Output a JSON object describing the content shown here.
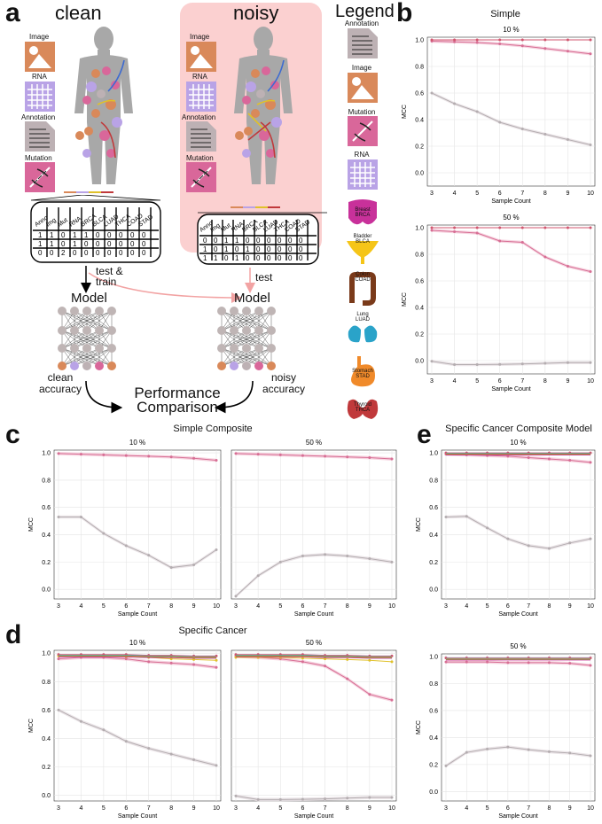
{
  "panel_labels": {
    "a": "a",
    "b": "b",
    "c": "c",
    "d": "d",
    "e": "e"
  },
  "panel_a": {
    "clean_title": "clean",
    "noisy_title": "noisy",
    "legend_title": "Legend",
    "modalities": [
      "Image",
      "RNA",
      "Annotation",
      "Mutation"
    ],
    "table_headers": [
      "Anno",
      "Img",
      "Mut",
      "RNA",
      "BRCA",
      "BLCA",
      "LUAD",
      "THCA",
      "COAD",
      "STAD"
    ],
    "clean_rows": [
      [
        "1",
        "1",
        "0",
        "1",
        "1",
        "0",
        "0",
        "0",
        "0",
        "0"
      ],
      [
        "1",
        "1",
        "0",
        "1",
        "0",
        "0",
        "0",
        "0",
        "0",
        "0"
      ],
      [
        "0",
        "0",
        "2",
        "0",
        "0",
        "0",
        "0",
        "0",
        "0",
        "0"
      ]
    ],
    "noisy_rows": [
      [
        "0",
        "0",
        "1",
        "1",
        "0",
        "0",
        "0",
        "0",
        "0",
        "0"
      ],
      [
        "1",
        "0",
        "1",
        "0",
        "1",
        "0",
        "0",
        "0",
        "0",
        "0"
      ],
      [
        "1",
        "1",
        "0",
        "1",
        "0",
        "0",
        "0",
        "0",
        "0",
        "0"
      ]
    ],
    "test_train_label": "test &\ntrain",
    "test_label": "test",
    "model_label": "Model",
    "clean_accuracy": "clean\naccuracy",
    "noisy_accuracy": "noisy\naccuracy",
    "performance": "Performance\nComparison",
    "legend_items": [
      "Annotation",
      "Image",
      "Mutation",
      "RNA"
    ],
    "cancers": [
      {
        "name": "Breast",
        "code": "BRCA",
        "color": "#c8319a"
      },
      {
        "name": "Bladder",
        "code": "BLCA",
        "color": "#f5c518"
      },
      {
        "name": "Colon",
        "code": "COAD",
        "color": "#7a3a1a"
      },
      {
        "name": "Lung",
        "code": "LUAD",
        "color": "#2aa3c9"
      },
      {
        "name": "Stomach",
        "code": "STAD",
        "color": "#f08a2a"
      },
      {
        "name": "Thyroid",
        "code": "THCA",
        "color": "#c0393b"
      }
    ]
  },
  "colors": {
    "image": "#d9895a",
    "rna": "#b9a3e6",
    "annotation": "#bdb1b4",
    "mutation": "#d9679a",
    "grey_line": "#b4adb0",
    "pink_line": "#d76e94",
    "noisy_bg": "#fbd0d0"
  },
  "chart_data": [
    {
      "id": "b1",
      "type": "line",
      "section": "Simple",
      "title": "10 %",
      "xlabel": "Sample Count",
      "ylabel": "MCC",
      "ylim": [
        -0.1,
        1.02
      ],
      "x": [
        3,
        4,
        5,
        6,
        7,
        8,
        9,
        10
      ],
      "yticks": [
        "0.0",
        "0.2",
        "0.4",
        "0.6",
        "0.8",
        "1.0"
      ],
      "series": [
        {
          "name": "grey",
          "values": [
            0.6,
            0.52,
            0.46,
            0.38,
            0.33,
            0.29,
            0.25,
            0.21
          ]
        },
        {
          "name": "pink",
          "values": [
            0.99,
            0.985,
            0.98,
            0.97,
            0.955,
            0.935,
            0.915,
            0.895
          ]
        },
        {
          "name": "top",
          "values": [
            1.0,
            1.0,
            1.0,
            1.0,
            1.0,
            1.0,
            1.0,
            1.0
          ]
        }
      ]
    },
    {
      "id": "b2",
      "type": "line",
      "title": "50 %",
      "xlabel": "Sample Count",
      "ylabel": "MCC",
      "ylim": [
        -0.1,
        1.02
      ],
      "x": [
        3,
        4,
        5,
        6,
        7,
        8,
        9,
        10
      ],
      "yticks": [
        "0.0",
        "0.2",
        "0.4",
        "0.6",
        "0.8",
        "1.0"
      ],
      "series": [
        {
          "name": "grey",
          "values": [
            -0.005,
            -0.03,
            -0.03,
            -0.028,
            -0.025,
            -0.02,
            -0.015,
            -0.015
          ]
        },
        {
          "name": "pink",
          "values": [
            0.98,
            0.97,
            0.96,
            0.9,
            0.89,
            0.78,
            0.71,
            0.67
          ]
        },
        {
          "name": "top",
          "values": [
            1.0,
            1.0,
            1.0,
            1.0,
            1.0,
            1.0,
            1.0,
            1.0
          ]
        }
      ]
    },
    {
      "id": "c1",
      "type": "line",
      "section": "Simple Composite",
      "title": "10 %",
      "xlabel": "Sample Count",
      "ylabel": "MCC",
      "ylim": [
        -0.07,
        1.02
      ],
      "x": [
        3,
        4,
        5,
        6,
        7,
        8,
        9,
        10
      ],
      "yticks": [
        "0.0",
        "0.2",
        "0.4",
        "0.6",
        "0.8",
        "1.0"
      ],
      "series": [
        {
          "name": "grey",
          "values": [
            0.53,
            0.53,
            0.41,
            0.32,
            0.25,
            0.16,
            0.18,
            0.29
          ]
        },
        {
          "name": "pink",
          "values": [
            0.995,
            0.99,
            0.985,
            0.98,
            0.975,
            0.97,
            0.96,
            0.945
          ]
        }
      ]
    },
    {
      "id": "c2",
      "type": "line",
      "title": "50 %",
      "xlabel": "Sample Count",
      "ylabel": "",
      "ylim": [
        -0.07,
        1.02
      ],
      "x": [
        3,
        4,
        5,
        6,
        7,
        8,
        9,
        10
      ],
      "yticks": [],
      "series": [
        {
          "name": "grey",
          "values": [
            -0.05,
            0.1,
            0.2,
            0.245,
            0.255,
            0.245,
            0.225,
            0.2
          ]
        },
        {
          "name": "pink",
          "values": [
            0.995,
            0.99,
            0.985,
            0.98,
            0.975,
            0.97,
            0.965,
            0.955
          ]
        }
      ]
    },
    {
      "id": "e1",
      "type": "line",
      "section": "Specific Cancer Composite Model",
      "title": "10 %",
      "xlabel": "Sample Count",
      "ylabel": "MCC",
      "ylim": [
        -0.07,
        1.02
      ],
      "x": [
        3,
        4,
        5,
        6,
        7,
        8,
        9,
        10
      ],
      "yticks": [
        "0.0",
        "0.2",
        "0.4",
        "0.6",
        "0.8",
        "1.0"
      ],
      "series": [
        {
          "name": "grey",
          "values": [
            0.53,
            0.535,
            0.45,
            0.37,
            0.32,
            0.3,
            0.34,
            0.37
          ]
        },
        {
          "name": "pink",
          "values": [
            0.99,
            0.985,
            0.98,
            0.975,
            0.965,
            0.955,
            0.945,
            0.93
          ]
        },
        {
          "name": "top",
          "values": [
            1.0,
            1.0,
            1.0,
            1.0,
            1.0,
            1.0,
            1.0,
            1.0
          ]
        }
      ]
    },
    {
      "id": "e2",
      "type": "line",
      "title": "50 %",
      "xlabel": "Sample Count",
      "ylabel": "MCC",
      "ylim": [
        -0.07,
        1.02
      ],
      "x": [
        3,
        4,
        5,
        6,
        7,
        8,
        9,
        10
      ],
      "yticks": [
        "0.0",
        "0.2",
        "0.4",
        "0.6",
        "0.8",
        "1.0"
      ],
      "series": [
        {
          "name": "grey",
          "values": [
            0.19,
            0.29,
            0.315,
            0.33,
            0.31,
            0.295,
            0.285,
            0.265
          ]
        },
        {
          "name": "pink",
          "values": [
            0.96,
            0.96,
            0.96,
            0.955,
            0.955,
            0.955,
            0.95,
            0.935
          ]
        },
        {
          "name": "top",
          "values": [
            0.99,
            0.99,
            0.99,
            0.99,
            0.99,
            0.99,
            0.99,
            0.99
          ]
        }
      ]
    },
    {
      "id": "d1",
      "type": "line",
      "section": "Specific Cancer",
      "title": "10 %",
      "xlabel": "Sample Count",
      "ylabel": "MCC",
      "ylim": [
        -0.04,
        1.02
      ],
      "x": [
        3,
        4,
        5,
        6,
        7,
        8,
        9,
        10
      ],
      "yticks": [
        "0.0",
        "0.2",
        "0.4",
        "0.6",
        "0.8",
        "1.0"
      ],
      "series": [
        {
          "name": "grey",
          "values": [
            0.6,
            0.52,
            0.46,
            0.38,
            0.33,
            0.29,
            0.25,
            0.21
          ]
        },
        {
          "name": "pink",
          "values": [
            0.96,
            0.97,
            0.97,
            0.96,
            0.94,
            0.93,
            0.92,
            0.9
          ]
        },
        {
          "name": "cancer",
          "values": [
            0.98,
            0.98,
            0.98,
            0.975,
            0.97,
            0.96,
            0.955,
            0.95
          ]
        },
        {
          "name": "top",
          "values": [
            0.99,
            0.99,
            0.99,
            0.99,
            0.985,
            0.985,
            0.98,
            0.98
          ]
        }
      ]
    },
    {
      "id": "d2",
      "type": "line",
      "title": "50 %",
      "xlabel": "Sample Count",
      "ylabel": "",
      "ylim": [
        -0.04,
        1.02
      ],
      "x": [
        3,
        4,
        5,
        6,
        7,
        8,
        9,
        10
      ],
      "yticks": [],
      "series": [
        {
          "name": "grey",
          "values": [
            -0.005,
            -0.03,
            -0.03,
            -0.028,
            -0.025,
            -0.02,
            -0.015,
            -0.015
          ]
        },
        {
          "name": "pink",
          "values": [
            0.98,
            0.97,
            0.96,
            0.94,
            0.91,
            0.82,
            0.71,
            0.67
          ]
        },
        {
          "name": "cancer",
          "values": [
            0.97,
            0.97,
            0.97,
            0.965,
            0.96,
            0.955,
            0.95,
            0.94
          ]
        },
        {
          "name": "top",
          "values": [
            0.99,
            0.99,
            0.99,
            0.99,
            0.985,
            0.985,
            0.98,
            0.98
          ]
        }
      ]
    }
  ]
}
